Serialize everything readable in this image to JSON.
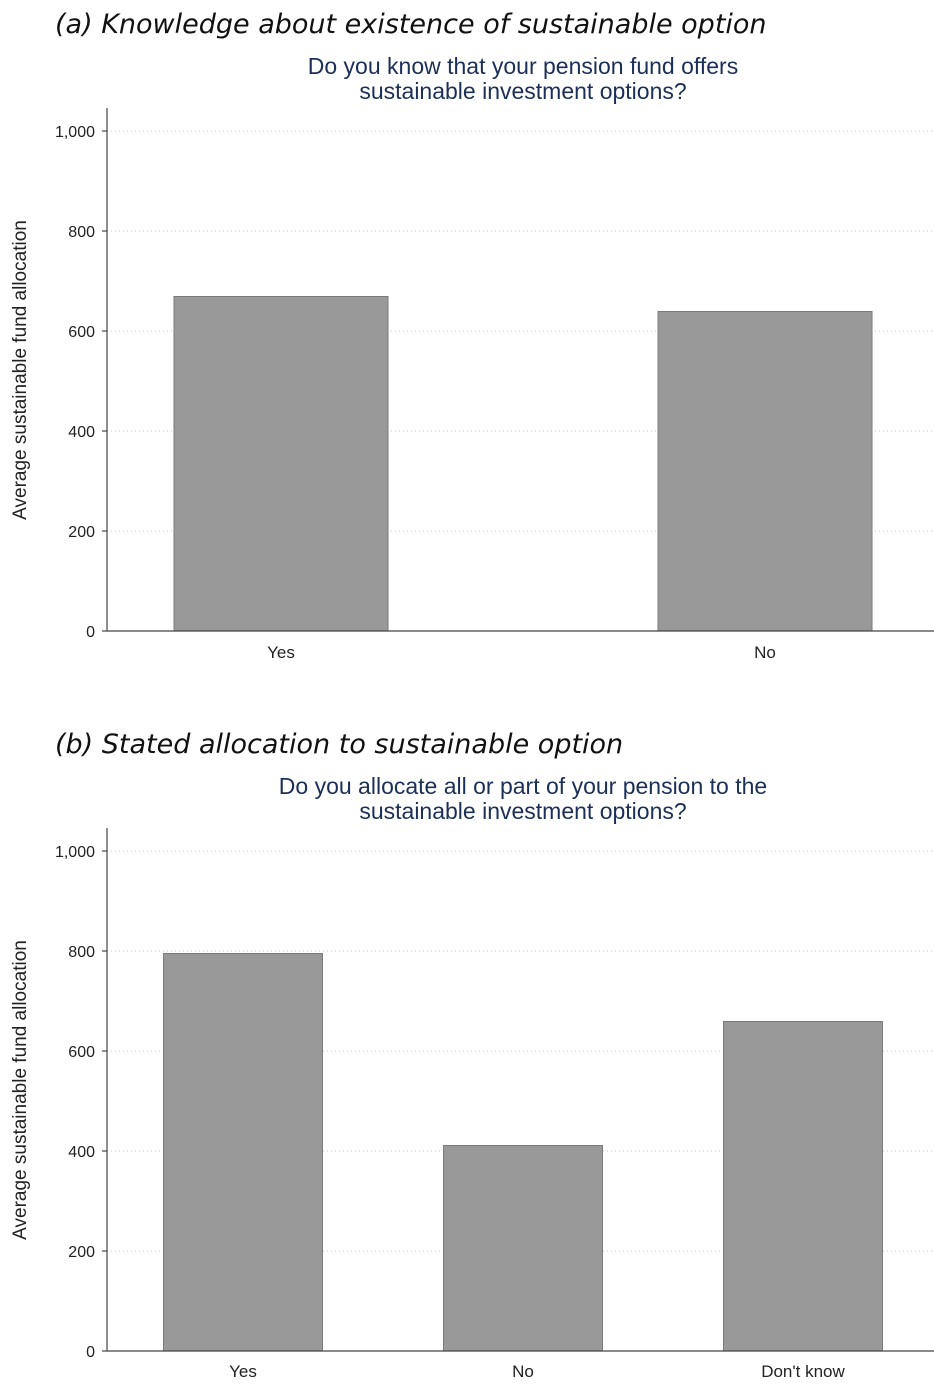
{
  "chart_data": [
    {
      "type": "bar",
      "panel_label": "(a) Knowledge about existence of sustainable option",
      "title_lines": [
        "Do you know that your pension fund offers",
        "sustainable investment options?"
      ],
      "ylabel": "Average sustainable fund allocation",
      "xlabel": "",
      "categories": [
        "Yes",
        "No"
      ],
      "values": [
        669,
        639
      ],
      "ylim": [
        0,
        1000
      ],
      "yticks": [
        0,
        200,
        400,
        600,
        800,
        1000
      ],
      "ytick_labels": [
        "0",
        "200",
        "400",
        "600",
        "800",
        "1,000"
      ],
      "grid": true,
      "bar_color": "#999999",
      "title_color": "#1b2f57"
    },
    {
      "type": "bar",
      "panel_label": "(b) Stated allocation to sustainable option",
      "title_lines": [
        "Do you allocate all or part of your pension to the",
        "sustainable investment options?"
      ],
      "ylabel": "Average sustainable fund allocation",
      "xlabel": "",
      "categories": [
        "Yes",
        "No",
        "Don't know"
      ],
      "values": [
        795,
        411,
        659
      ],
      "ylim": [
        0,
        1000
      ],
      "yticks": [
        0,
        200,
        400,
        600,
        800,
        1000
      ],
      "ytick_labels": [
        "0",
        "200",
        "400",
        "600",
        "800",
        "1,000"
      ],
      "grid": true,
      "bar_color": "#999999",
      "title_color": "#1b2f57"
    }
  ]
}
